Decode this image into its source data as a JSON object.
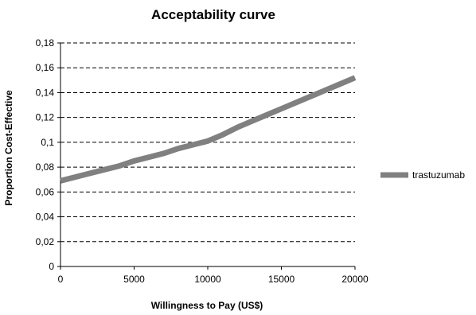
{
  "chart_data": {
    "type": "line",
    "title": "Acceptability curve",
    "xlabel": "Willingness to Pay (US$)",
    "ylabel": "Proportion Cost-Effective",
    "xlim": [
      0,
      20000
    ],
    "ylim": [
      0,
      0.18
    ],
    "x_ticks": [
      0,
      5000,
      10000,
      15000,
      20000
    ],
    "x_tick_labels": [
      "0",
      "5000",
      "10000",
      "15000",
      "20000"
    ],
    "y_ticks": [
      0,
      0.02,
      0.04,
      0.06,
      0.08,
      0.1,
      0.12,
      0.14,
      0.16,
      0.18
    ],
    "y_tick_labels": [
      "0",
      "0,02",
      "0,04",
      "0,06",
      "0,08",
      "0,1",
      "0,12",
      "0,14",
      "0,16",
      "0,18"
    ],
    "grid": "horizontal dashed",
    "legend_position": "right",
    "series": [
      {
        "name": "trastuzumab",
        "color": "#808080",
        "x": [
          0,
          1000,
          2000,
          3000,
          4000,
          5000,
          6000,
          7000,
          8000,
          9000,
          10000,
          11000,
          12000,
          13000,
          14000,
          15000,
          16000,
          17000,
          18000,
          19000,
          20000
        ],
        "y": [
          0.069,
          0.072,
          0.075,
          0.078,
          0.081,
          0.085,
          0.088,
          0.091,
          0.095,
          0.098,
          0.101,
          0.106,
          0.112,
          0.117,
          0.122,
          0.127,
          0.132,
          0.137,
          0.142,
          0.147,
          0.152
        ]
      }
    ]
  }
}
